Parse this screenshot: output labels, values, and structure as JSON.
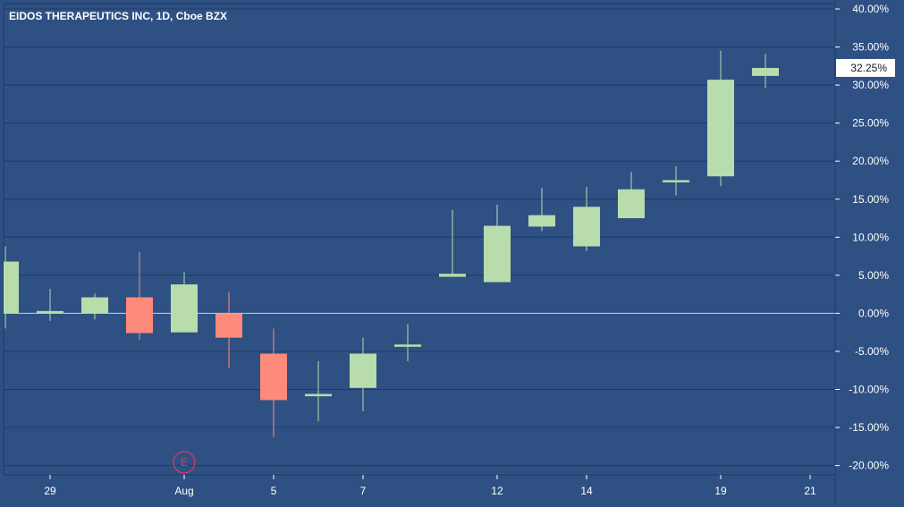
{
  "chart_data": {
    "type": "candlestick",
    "title": "EIDOS THERAPEUTICS INC, 1D, Cboe BZX",
    "y_unit": "%",
    "ylim": [
      -21,
      40
    ],
    "y_ticks": [
      "40.00%",
      "35.00%",
      "30.00%",
      "25.00%",
      "20.00%",
      "15.00%",
      "10.00%",
      "5.00%",
      "0.00%",
      "-5.00%",
      "-10.00%",
      "-15.00%",
      "-20.00%"
    ],
    "y_tick_values": [
      40,
      35,
      30,
      25,
      20,
      15,
      10,
      5,
      0,
      -5,
      -10,
      -15,
      -20
    ],
    "x_ticks": [
      "29",
      "Aug",
      "5",
      "7",
      "12",
      "14",
      "19",
      "21"
    ],
    "x_tick_slots": [
      1,
      4,
      6,
      8,
      11,
      13,
      16,
      18
    ],
    "candles": [
      {
        "open": 0.0,
        "high": 8.8,
        "low": -2.0,
        "close": 6.8
      },
      {
        "open": 0.1,
        "high": 3.2,
        "low": -1.0,
        "close": 0.3
      },
      {
        "open": 0.0,
        "high": 2.6,
        "low": -0.8,
        "close": 2.1
      },
      {
        "open": 2.1,
        "high": 8.1,
        "low": -3.5,
        "close": -2.6
      },
      {
        "open": -2.5,
        "high": 5.4,
        "low": -2.5,
        "close": 3.8
      },
      {
        "open": 0.0,
        "high": 2.8,
        "low": -7.2,
        "close": -3.2
      },
      {
        "open": -5.3,
        "high": -2.0,
        "low": -16.3,
        "close": -11.4
      },
      {
        "open": -10.9,
        "high": -6.3,
        "low": -14.2,
        "close": -10.6
      },
      {
        "open": -9.8,
        "high": -3.2,
        "low": -12.9,
        "close": -5.3
      },
      {
        "open": -4.4,
        "high": -1.4,
        "low": -6.3,
        "close": -4.1
      },
      {
        "open": 4.8,
        "high": 13.6,
        "low": 4.8,
        "close": 5.2
      },
      {
        "open": 4.1,
        "high": 14.3,
        "low": 4.1,
        "close": 11.5
      },
      {
        "open": 11.4,
        "high": 16.5,
        "low": 10.8,
        "close": 12.9
      },
      {
        "open": 8.8,
        "high": 16.6,
        "low": 8.2,
        "close": 14.0
      },
      {
        "open": 12.5,
        "high": 18.6,
        "low": 12.5,
        "close": 16.3
      },
      {
        "open": 17.4,
        "high": 19.3,
        "low": 15.5,
        "close": 17.5
      },
      {
        "open": 18.0,
        "high": 34.5,
        "low": 16.7,
        "close": 30.7
      },
      {
        "open": 31.2,
        "high": 34.1,
        "low": 29.6,
        "close": 32.25
      }
    ],
    "last_value_label": "32.25%",
    "last_value": 32.25,
    "event_marker": {
      "label": "E",
      "slot": 4
    },
    "grid": true,
    "baseline_value": 0
  },
  "colors": {
    "background": "#2f5083",
    "border": "#1e3b66",
    "up": "#b8dcab",
    "down": "#fe8a7b",
    "grid": "#1e3b66",
    "baseline": "#c6d2e4",
    "text": "#ffffff",
    "marker": "#e0385b"
  }
}
